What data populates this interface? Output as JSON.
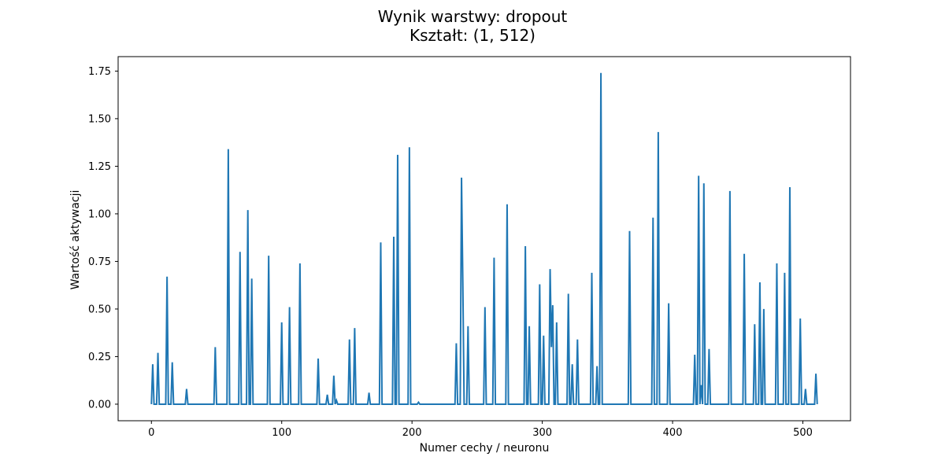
{
  "chart_data": {
    "type": "line",
    "title_line1": "Wynik warstwy: dropout",
    "title_line2": "Kształt: (1, 512)",
    "xlabel": "Numer cechy / neuronu",
    "ylabel": "Wartość aktywacji",
    "xlim": [
      -25.55,
      536.55
    ],
    "ylim": [
      -0.087,
      1.826
    ],
    "x_ticks": [
      0,
      100,
      200,
      300,
      400,
      500
    ],
    "x_tick_labels": [
      "0",
      "100",
      "200",
      "300",
      "400",
      "500"
    ],
    "y_ticks": [
      0.0,
      0.25,
      0.5,
      0.75,
      1.0,
      1.25,
      1.5,
      1.75
    ],
    "y_tick_labels": [
      "0.00",
      "0.25",
      "0.50",
      "0.75",
      "1.00",
      "1.25",
      "1.50",
      "1.75"
    ],
    "grid": false,
    "legend": "none",
    "x_count": 512,
    "series": [
      {
        "color": "#1f77b4",
        "spikes": [
          [
            1,
            0.21
          ],
          [
            5,
            0.27
          ],
          [
            12,
            0.67
          ],
          [
            16,
            0.22
          ],
          [
            27,
            0.08
          ],
          [
            49,
            0.3
          ],
          [
            59,
            1.34
          ],
          [
            68,
            0.8
          ],
          [
            74,
            1.02
          ],
          [
            77,
            0.66
          ],
          [
            90,
            0.78
          ],
          [
            100,
            0.43
          ],
          [
            106,
            0.51
          ],
          [
            114,
            0.74
          ],
          [
            128,
            0.24
          ],
          [
            135,
            0.05
          ],
          [
            140,
            0.15
          ],
          [
            142,
            0.02
          ],
          [
            152,
            0.34
          ],
          [
            156,
            0.4
          ],
          [
            167,
            0.06
          ],
          [
            176,
            0.85
          ],
          [
            186,
            0.88
          ],
          [
            189,
            1.31
          ],
          [
            198,
            1.35
          ],
          [
            205,
            0.01
          ],
          [
            234,
            0.32
          ],
          [
            238,
            1.19
          ],
          [
            239,
            0.64
          ],
          [
            243,
            0.41
          ],
          [
            256,
            0.51
          ],
          [
            263,
            0.77
          ],
          [
            273,
            1.05
          ],
          [
            287,
            0.83
          ],
          [
            290,
            0.41
          ],
          [
            298,
            0.63
          ],
          [
            301,
            0.36
          ],
          [
            306,
            0.71
          ],
          [
            307,
            0.3
          ],
          [
            308,
            0.52
          ],
          [
            311,
            0.43
          ],
          [
            320,
            0.58
          ],
          [
            323,
            0.21
          ],
          [
            327,
            0.34
          ],
          [
            338,
            0.69
          ],
          [
            342,
            0.2
          ],
          [
            345,
            1.74
          ],
          [
            367,
            0.91
          ],
          [
            385,
            0.98
          ],
          [
            389,
            1.43
          ],
          [
            397,
            0.53
          ],
          [
            417,
            0.26
          ],
          [
            420,
            1.2
          ],
          [
            422,
            0.1
          ],
          [
            424,
            1.16
          ],
          [
            428,
            0.29
          ],
          [
            444,
            1.12
          ],
          [
            455,
            0.79
          ],
          [
            463,
            0.42
          ],
          [
            467,
            0.64
          ],
          [
            470,
            0.5
          ],
          [
            480,
            0.74
          ],
          [
            486,
            0.69
          ],
          [
            490,
            1.14
          ],
          [
            498,
            0.45
          ],
          [
            502,
            0.08
          ],
          [
            510,
            0.16
          ]
        ]
      }
    ]
  }
}
